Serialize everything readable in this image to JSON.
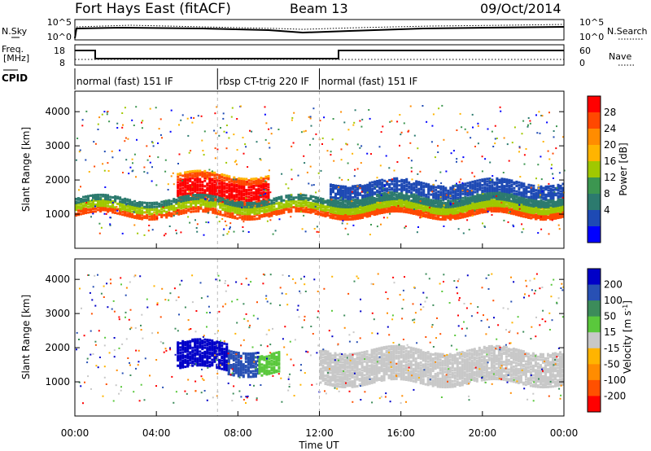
{
  "header": {
    "station": "Fort Hays East (fitACF)",
    "beam": "Beam 13",
    "date": "09/Oct/2014"
  },
  "noise_panel": {
    "left_label": "N.Sky",
    "right_label": "N.Search",
    "left_ticks": [
      "10^5",
      "10^0"
    ],
    "right_ticks": [
      "10^5",
      "10^0"
    ]
  },
  "freq_panel": {
    "left_label_line1": "Freq.",
    "left_label_line2": "[MHz]",
    "right_label": "Nave",
    "left_ticks": [
      "18",
      "8"
    ],
    "right_ticks": [
      "60",
      "0"
    ]
  },
  "cpid": {
    "label": "CPID",
    "segments": [
      {
        "start_hour": 0.0,
        "end_hour": 7.0,
        "text": "normal (fast) 151 IF"
      },
      {
        "start_hour": 7.0,
        "end_hour": 12.0,
        "text": "rbsp CT-trig 220 IF"
      },
      {
        "start_hour": 12.0,
        "end_hour": 24.0,
        "text": "normal (fast) 151 IF"
      }
    ]
  },
  "chart_data": [
    {
      "type": "heatmap",
      "name": "power",
      "ylabel": "Slant Range [km]",
      "yticks": [
        1000,
        2000,
        3000,
        4000
      ],
      "ylim": [
        0,
        4600
      ],
      "xlim": [
        0,
        24
      ],
      "colorbar": {
        "label": "Power [dB]",
        "ticks": [
          "28",
          "24",
          "20",
          "16",
          "12",
          "8",
          "4"
        ],
        "colors": [
          "#ff0000",
          "#ff4800",
          "#ff8c00",
          "#ffb400",
          "#a0c800",
          "#3c9650",
          "#2c7a6e",
          "#1e4ab4",
          "#0000ff"
        ]
      },
      "features": [
        {
          "start_hour": 5.0,
          "end_hour": 9.5,
          "range_km": [
            1300,
            2200
          ],
          "level": "high"
        },
        {
          "start_hour": 0.0,
          "end_hour": 24.0,
          "range_km": [
            1000,
            1500
          ],
          "level": "medium"
        },
        {
          "start_hour": 12.5,
          "end_hour": 24.0,
          "range_km": [
            1000,
            2000
          ],
          "level": "medium"
        }
      ]
    },
    {
      "type": "heatmap",
      "name": "velocity",
      "ylabel": "Slant Range [km]",
      "yticks": [
        1000,
        2000,
        3000,
        4000
      ],
      "ylim": [
        0,
        4600
      ],
      "xlim": [
        0,
        24
      ],
      "xlabel": "Time UT",
      "xticks": [
        "00:00",
        "04:00",
        "08:00",
        "12:00",
        "16:00",
        "20:00",
        "00:00"
      ],
      "colorbar": {
        "label": "Velocity [m s",
        "label_superscript": "-1",
        "label_close": "]",
        "ticks": [
          "200",
          "100",
          "50",
          "15",
          "-15",
          "-50",
          "-100",
          "-200"
        ],
        "colors": [
          "#0000c8",
          "#2850b4",
          "#3c8c5a",
          "#5ac83c",
          "#c8c8c8",
          "#ffb400",
          "#ff8c00",
          "#ff5000",
          "#ff0000"
        ]
      },
      "features": [
        {
          "start_hour": 5.0,
          "end_hour": 7.5,
          "range_km": [
            1400,
            2200
          ],
          "velocity": "200"
        },
        {
          "start_hour": 7.5,
          "end_hour": 9.0,
          "range_km": [
            1300,
            2000
          ],
          "velocity": "100"
        },
        {
          "start_hour": 9.0,
          "end_hour": 10.0,
          "range_km": [
            1300,
            1900
          ],
          "velocity": "50"
        },
        {
          "start_hour": 12.0,
          "end_hour": 24.0,
          "range_km": [
            1000,
            2000
          ],
          "velocity": "0"
        }
      ]
    }
  ]
}
